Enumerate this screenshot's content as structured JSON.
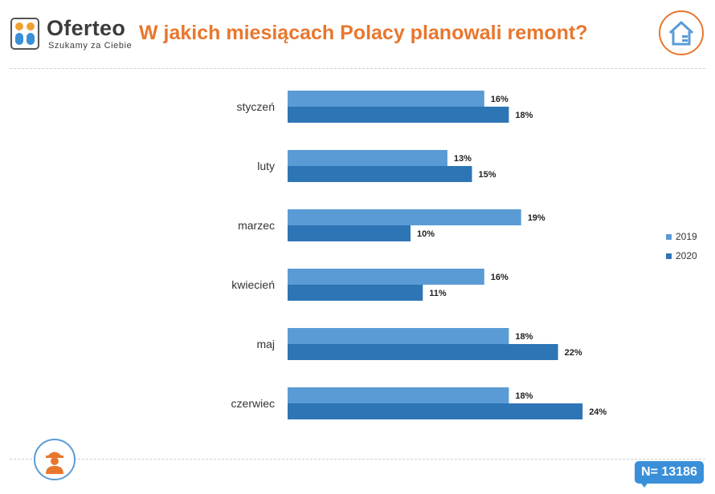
{
  "brand": {
    "name": "Oferteo",
    "tagline": "Szukamy za Ciebie",
    "logo_icon": "oferteo-people-logo-icon"
  },
  "header": {
    "title": "W jakich miesiącach Polacy planowali remont?",
    "badge_icon": "house-icon"
  },
  "footer": {
    "badge_icon": "worker-icon",
    "sample_size": "N= 13186"
  },
  "colors": {
    "accent": "#e8772e",
    "series_2019": "#5b9bd5",
    "series_2020": "#2e75b6",
    "badge_blue": "#3a8fd9"
  },
  "chart_data": {
    "type": "bar",
    "orientation": "horizontal",
    "title": "W jakich miesiącach Polacy planowali remont?",
    "categories": [
      "styczeń",
      "luty",
      "marzec",
      "kwiecień",
      "maj",
      "czerwiec"
    ],
    "series": [
      {
        "name": "2019",
        "values": [
          16,
          13,
          19,
          16,
          18,
          18
        ],
        "labels": [
          "16%",
          "13%",
          "19%",
          "16%",
          "18%",
          "18%"
        ],
        "color": "#5b9bd5"
      },
      {
        "name": "2020",
        "values": [
          18,
          15,
          10,
          11,
          22,
          24
        ],
        "labels": [
          "18%",
          "15%",
          "10%",
          "11%",
          "22%",
          "24%"
        ],
        "color": "#2e75b6"
      }
    ],
    "unit": "%",
    "xlim": [
      0,
      24
    ],
    "grid": false,
    "legend_position": "right"
  }
}
